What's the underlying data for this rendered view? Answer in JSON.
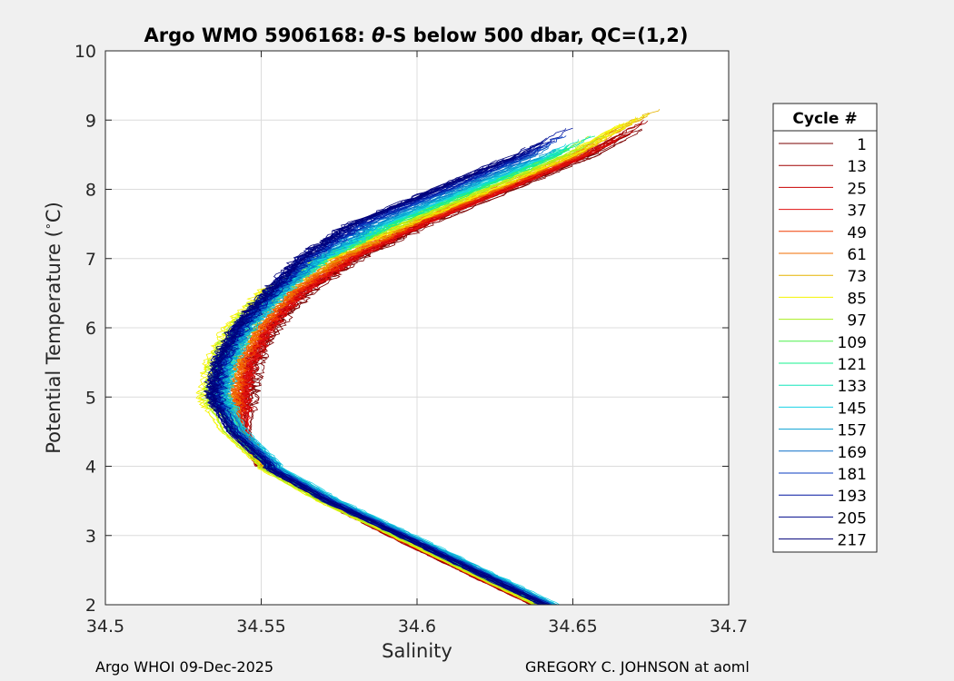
{
  "footer": {
    "left": "Argo WHOI 09-Dec-2025",
    "right": "GREGORY C. JOHNSON at aoml"
  },
  "chart_data": {
    "type": "line",
    "title_parts": [
      "Argo WMO 5906168: ",
      "θ",
      "-S below 500 dbar,  QC=(1,2)"
    ],
    "xlabel": "Salinity",
    "ylabel_parts": [
      "Potential Temperature (",
      "∘",
      "C)"
    ],
    "xlim": [
      34.5,
      34.7
    ],
    "ylim": [
      2,
      10
    ],
    "xticks": [
      34.5,
      34.55,
      34.6,
      34.65,
      34.7
    ],
    "xtick_labels": [
      "34.5",
      "34.55",
      "34.6",
      "34.65",
      "34.7"
    ],
    "yticks": [
      2,
      3,
      4,
      5,
      6,
      7,
      8,
      9,
      10
    ],
    "ytick_labels": [
      "2",
      "3",
      "4",
      "5",
      "6",
      "7",
      "8",
      "9",
      "10"
    ],
    "grid": true,
    "legend": {
      "title": "Cycle #",
      "placement": "outside-right",
      "entries": [
        {
          "label": "1",
          "color": "#7a0000"
        },
        {
          "label": "13",
          "color": "#a00000"
        },
        {
          "label": "25",
          "color": "#c80000"
        },
        {
          "label": "37",
          "color": "#e01010"
        },
        {
          "label": "49",
          "color": "#f03c00"
        },
        {
          "label": "61",
          "color": "#f06e00"
        },
        {
          "label": "73",
          "color": "#e6b400"
        },
        {
          "label": "85",
          "color": "#f5f500"
        },
        {
          "label": "97",
          "color": "#a8ee1e"
        },
        {
          "label": "109",
          "color": "#4cf04c"
        },
        {
          "label": "121",
          "color": "#14f08c"
        },
        {
          "label": "133",
          "color": "#12e6bc"
        },
        {
          "label": "145",
          "color": "#18d2e6"
        },
        {
          "label": "157",
          "color": "#0aa0d2"
        },
        {
          "label": "169",
          "color": "#0a6ec8"
        },
        {
          "label": "181",
          "color": "#0a3cc0"
        },
        {
          "label": "193",
          "color": "#0014a0"
        },
        {
          "label": "205",
          "color": "#000a8c"
        },
        {
          "label": "217",
          "color": "#00007a"
        }
      ]
    },
    "profile_shape": {
      "description_points_S_theta": [
        [
          34.641,
          2.0
        ],
        [
          34.618,
          2.5
        ],
        [
          34.595,
          3.0
        ],
        [
          34.572,
          3.5
        ],
        [
          34.553,
          4.0
        ],
        [
          34.543,
          4.5
        ],
        [
          34.539,
          5.0
        ],
        [
          34.541,
          5.5
        ],
        [
          34.547,
          6.0
        ],
        [
          34.557,
          6.5
        ],
        [
          34.572,
          7.0
        ],
        [
          34.593,
          7.5
        ],
        [
          34.62,
          8.0
        ],
        [
          34.646,
          8.5
        ],
        [
          34.662,
          8.9
        ]
      ],
      "cycle_offsets": [
        {
          "cycle": 1,
          "dS_deep": -0.004,
          "dS_mid": 0.007,
          "dS_upper": 0.01,
          "top_theta": 9.0
        },
        {
          "cycle": 13,
          "dS_deep": -0.003,
          "dS_mid": 0.006,
          "dS_upper": 0.009,
          "top_theta": 9.05
        },
        {
          "cycle": 25,
          "dS_deep": -0.003,
          "dS_mid": 0.006,
          "dS_upper": 0.009,
          "top_theta": 8.9
        },
        {
          "cycle": 37,
          "dS_deep": -0.002,
          "dS_mid": 0.005,
          "dS_upper": 0.008,
          "top_theta": 8.8
        },
        {
          "cycle": 49,
          "dS_deep": -0.002,
          "dS_mid": 0.004,
          "dS_upper": 0.007,
          "top_theta": 8.7
        },
        {
          "cycle": 61,
          "dS_deep": -0.002,
          "dS_mid": 0.002,
          "dS_upper": 0.005,
          "top_theta": 8.9
        },
        {
          "cycle": 73,
          "dS_deep": -0.002,
          "dS_mid": -0.001,
          "dS_upper": 0.004,
          "top_theta": 9.2
        },
        {
          "cycle": 85,
          "dS_deep": -0.002,
          "dS_mid": -0.007,
          "dS_upper": 0.003,
          "top_theta": 9.1
        },
        {
          "cycle": 97,
          "dS_deep": -0.001,
          "dS_mid": -0.005,
          "dS_upper": 0.001,
          "top_theta": 8.8
        },
        {
          "cycle": 109,
          "dS_deep": 0.0,
          "dS_mid": -0.003,
          "dS_upper": 0.0,
          "top_theta": 8.7
        },
        {
          "cycle": 121,
          "dS_deep": 0.001,
          "dS_mid": -0.002,
          "dS_upper": -0.001,
          "top_theta": 8.8
        },
        {
          "cycle": 133,
          "dS_deep": 0.002,
          "dS_mid": -0.001,
          "dS_upper": -0.002,
          "top_theta": 8.9
        },
        {
          "cycle": 145,
          "dS_deep": 0.003,
          "dS_mid": -0.001,
          "dS_upper": -0.004,
          "top_theta": 8.7
        },
        {
          "cycle": 157,
          "dS_deep": 0.002,
          "dS_mid": -0.002,
          "dS_upper": -0.006,
          "top_theta": 8.6
        },
        {
          "cycle": 169,
          "dS_deep": 0.001,
          "dS_mid": -0.003,
          "dS_upper": -0.008,
          "top_theta": 8.7
        },
        {
          "cycle": 181,
          "dS_deep": 0.001,
          "dS_mid": -0.004,
          "dS_upper": -0.01,
          "top_theta": 8.8
        },
        {
          "cycle": 193,
          "dS_deep": 0.0,
          "dS_mid": -0.004,
          "dS_upper": -0.012,
          "top_theta": 8.9
        },
        {
          "cycle": 205,
          "dS_deep": 0.0,
          "dS_mid": -0.005,
          "dS_upper": -0.013,
          "top_theta": 8.8
        },
        {
          "cycle": 217,
          "dS_deep": 0.0,
          "dS_mid": -0.005,
          "dS_upper": -0.014,
          "top_theta": 8.7
        }
      ]
    }
  }
}
